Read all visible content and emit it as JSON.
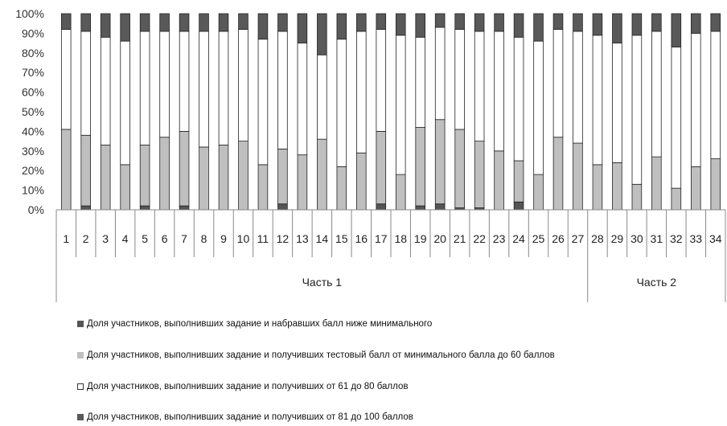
{
  "chart_data": {
    "type": "bar",
    "stacked": true,
    "percent": true,
    "categories": [
      "1",
      "2",
      "3",
      "4",
      "5",
      "6",
      "7",
      "8",
      "9",
      "10",
      "11",
      "12",
      "13",
      "14",
      "15",
      "16",
      "17",
      "18",
      "19",
      "20",
      "21",
      "22",
      "23",
      "24",
      "25",
      "26",
      "27",
      "28",
      "29",
      "30",
      "31",
      "32",
      "33",
      "34"
    ],
    "groups": [
      {
        "label": "Часть 1",
        "from": 1,
        "to": 27
      },
      {
        "label": "Часть 2",
        "from": 28,
        "to": 34
      }
    ],
    "y_ticks": [
      "0%",
      "10%",
      "20%",
      "30%",
      "40%",
      "50%",
      "60%",
      "70%",
      "80%",
      "90%",
      "100%"
    ],
    "ylim": [
      0,
      100
    ],
    "series": [
      {
        "name": "Доля участников, выполнивших задание и набравших балл ниже минимального",
        "color": "#555555",
        "values": [
          0,
          2,
          0,
          0,
          2,
          0,
          2,
          0,
          0,
          0,
          0,
          3,
          0,
          0,
          0,
          0,
          3,
          0,
          2,
          3,
          1,
          1,
          0,
          4,
          0,
          0,
          0,
          0,
          0,
          0,
          0,
          0,
          0,
          0
        ]
      },
      {
        "name": "Доля участников, выполнивших задание и получивших тестовый балл от минимального балла до 60 баллов",
        "color": "#bfbfbf",
        "values": [
          41,
          36,
          33,
          23,
          31,
          37,
          38,
          32,
          33,
          35,
          23,
          28,
          28,
          36,
          22,
          29,
          37,
          18,
          40,
          43,
          40,
          34,
          30,
          21,
          18,
          37,
          34,
          23,
          24,
          13,
          27,
          11,
          22,
          26
        ]
      },
      {
        "name": "Доля участников, выполнивших задание и получивших от 61 до 80 баллов",
        "color": "#ffffff",
        "values": [
          51,
          53,
          55,
          63,
          58,
          54,
          51,
          59,
          58,
          57,
          64,
          60,
          57,
          43,
          65,
          62,
          52,
          71,
          46,
          47,
          51,
          56,
          61,
          63,
          68,
          55,
          57,
          66,
          61,
          76,
          64,
          72,
          68,
          65
        ]
      },
      {
        "name": "Доля участников, выполнивших задание и получивших от 81 до 100 баллов",
        "color": "#595959",
        "values": [
          8,
          9,
          12,
          14,
          9,
          9,
          9,
          9,
          9,
          8,
          13,
          9,
          15,
          21,
          13,
          9,
          8,
          11,
          12,
          7,
          8,
          9,
          9,
          12,
          14,
          8,
          9,
          11,
          15,
          11,
          9,
          17,
          10,
          9
        ]
      }
    ]
  }
}
